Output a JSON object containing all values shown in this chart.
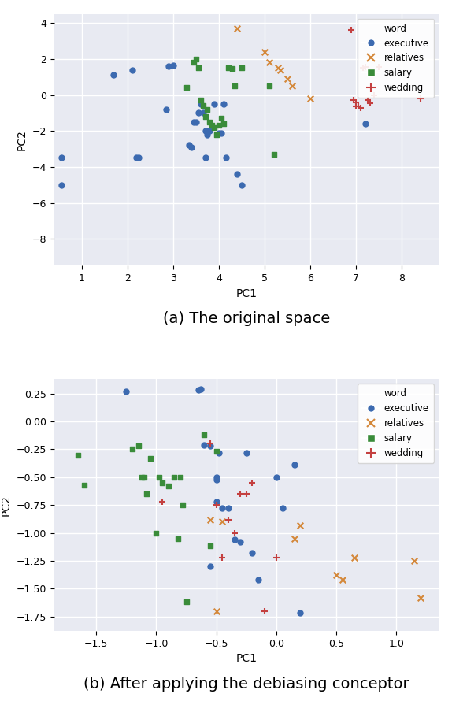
{
  "plot1": {
    "caption": "(a) The original space",
    "xlabel": "PC1",
    "ylabel": "PC2",
    "xlim": [
      0.4,
      8.8
    ],
    "ylim": [
      -9.5,
      4.5
    ],
    "xticks": [
      1,
      2,
      3,
      4,
      5,
      6,
      7,
      8
    ],
    "yticks": [
      4,
      2,
      0,
      -2,
      -4,
      -6,
      -8
    ],
    "executive": {
      "x": [
        0.55,
        0.55,
        1.7,
        2.1,
        2.2,
        2.25,
        2.85,
        2.9,
        3.0,
        3.35,
        3.4,
        3.45,
        3.5,
        3.55,
        3.6,
        3.65,
        3.7,
        3.7,
        3.75,
        3.8,
        3.9,
        4.0,
        4.05,
        4.1,
        4.15,
        4.4,
        4.5,
        7.2
      ],
      "y": [
        -3.5,
        -5.0,
        1.1,
        1.4,
        -3.5,
        -3.5,
        -0.8,
        1.6,
        1.65,
        -2.8,
        -2.9,
        -1.5,
        -1.5,
        -1.0,
        -0.5,
        -1.0,
        -2.0,
        -3.5,
        -2.2,
        -2.0,
        -0.5,
        -2.1,
        -2.1,
        -0.5,
        -3.5,
        -4.4,
        -5.0,
        -1.6
      ]
    },
    "relatives": {
      "x": [
        4.4,
        5.0,
        5.1,
        5.3,
        5.35,
        5.5,
        5.6,
        6.0
      ],
      "y": [
        3.7,
        2.4,
        1.8,
        1.5,
        1.4,
        0.9,
        0.5,
        -0.2
      ]
    },
    "salary": {
      "x": [
        3.3,
        3.45,
        3.5,
        3.55,
        3.6,
        3.65,
        3.7,
        3.75,
        3.8,
        3.85,
        3.9,
        3.95,
        4.0,
        4.05,
        4.1,
        4.2,
        4.3,
        4.35,
        4.5,
        5.1,
        5.2
      ],
      "y": [
        0.4,
        1.8,
        2.0,
        1.5,
        -0.3,
        -0.6,
        -1.2,
        -0.8,
        -1.5,
        -1.7,
        -1.8,
        -2.2,
        -1.7,
        -1.3,
        -1.6,
        1.5,
        1.45,
        0.5,
        1.5,
        0.5,
        -3.3
      ]
    },
    "wedding": {
      "x": [
        6.9,
        6.95,
        7.0,
        7.0,
        7.05,
        7.1,
        7.15,
        7.2,
        7.25,
        7.3,
        7.4,
        7.5,
        8.4
      ],
      "y": [
        3.6,
        -0.3,
        -0.4,
        -0.65,
        -0.65,
        -0.7,
        1.5,
        1.55,
        -0.3,
        -0.45,
        0.0,
        1.55,
        -0.2
      ]
    }
  },
  "plot2": {
    "caption": "(b) After applying the debiasing conceptor",
    "xlabel": "PC1",
    "ylabel": "PC2",
    "xlim": [
      -1.85,
      1.35
    ],
    "ylim": [
      -1.88,
      0.38
    ],
    "xticks": [
      -1.5,
      -1.0,
      -0.5,
      0.0,
      0.5,
      1.0
    ],
    "yticks": [
      0.25,
      0.0,
      -0.25,
      -0.5,
      -0.75,
      -1.0,
      -1.25,
      -1.5,
      -1.75
    ],
    "executive": {
      "x": [
        -1.25,
        -0.65,
        -0.63,
        -0.6,
        -0.55,
        -0.5,
        -0.5,
        -0.48,
        -0.45,
        -0.4,
        -0.35,
        -0.3,
        -0.25,
        -0.2,
        -0.15,
        0.0,
        0.05,
        0.15,
        0.2,
        -0.55,
        -0.5
      ],
      "y": [
        0.27,
        0.28,
        0.29,
        -0.21,
        -0.22,
        -0.5,
        -0.52,
        -0.28,
        -0.78,
        -0.78,
        -1.06,
        -1.08,
        -0.28,
        -1.18,
        -1.42,
        -0.5,
        -0.78,
        -0.39,
        -1.72,
        -1.3,
        -0.72
      ]
    },
    "relatives": {
      "x": [
        -0.55,
        -0.5,
        -0.45,
        0.15,
        0.2,
        0.5,
        0.55,
        0.65,
        1.15,
        1.2
      ],
      "y": [
        -0.88,
        -1.7,
        -0.9,
        -1.05,
        -0.93,
        -1.38,
        -1.42,
        -1.22,
        -1.25,
        -1.58
      ]
    },
    "salary": {
      "x": [
        -1.65,
        -1.6,
        -1.2,
        -1.15,
        -1.12,
        -1.1,
        -1.08,
        -1.05,
        -1.0,
        -0.98,
        -0.95,
        -0.9,
        -0.85,
        -0.82,
        -0.8,
        -0.78,
        -0.75,
        -0.6,
        -0.55,
        -0.5
      ],
      "y": [
        -0.3,
        -0.57,
        -0.25,
        -0.22,
        -0.5,
        -0.5,
        -0.65,
        -0.33,
        -1.0,
        -0.5,
        -0.55,
        -0.58,
        -0.5,
        -1.05,
        -0.5,
        -0.75,
        -1.62,
        -0.12,
        -1.12,
        -0.27
      ]
    },
    "wedding": {
      "x": [
        -0.95,
        -0.55,
        -0.5,
        -0.45,
        -0.4,
        -0.35,
        -0.3,
        -0.25,
        -0.2,
        -0.1,
        0.0
      ],
      "y": [
        -0.72,
        -0.2,
        -0.75,
        -1.22,
        -0.88,
        -1.0,
        -0.65,
        -0.65,
        -0.55,
        -1.7,
        -1.22
      ]
    }
  },
  "colors": {
    "executive": "#3c6ab0",
    "relatives": "#d4883a",
    "salary": "#3a8c3a",
    "wedding": "#c44040"
  },
  "bg_color": "#e8eaf2",
  "grid_color": "white",
  "caption_fontsize": 14
}
